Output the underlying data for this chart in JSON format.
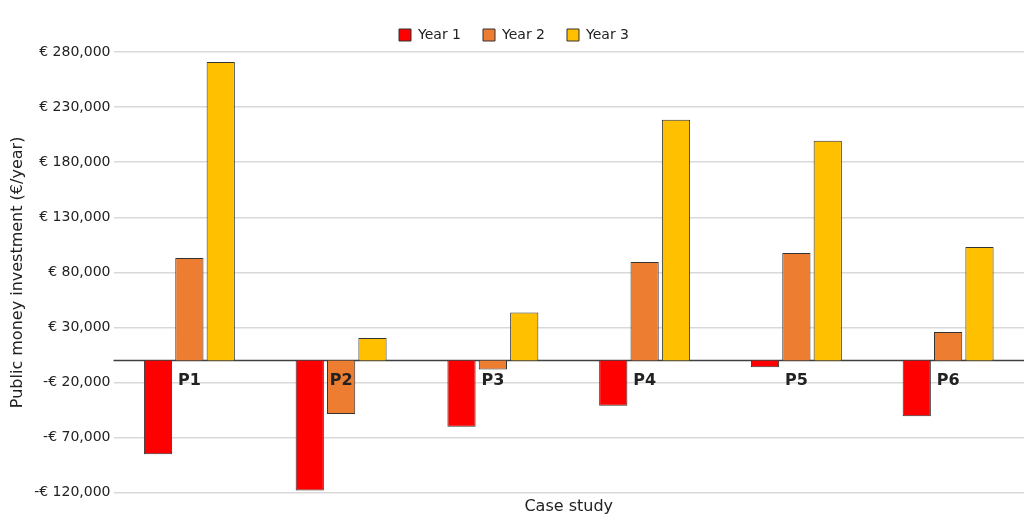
{
  "chart_data": {
    "type": "bar",
    "xlabel": "Case study",
    "ylabel": "Public money investment (€/year)",
    "categories": [
      "P1",
      "P2",
      "P3",
      "P4",
      "P5",
      "P6"
    ],
    "series": [
      {
        "name": "Year 1",
        "color": "#ff0000",
        "values": [
          -85000,
          -118000,
          -60000,
          -41000,
          -6000,
          -50500
        ]
      },
      {
        "name": "Year 2",
        "color": "#ed7d31",
        "values": [
          93000,
          -48500,
          -8000,
          89500,
          97500,
          26000
        ]
      },
      {
        "name": "Year 3",
        "color": "#ffc000",
        "values": [
          271000,
          20500,
          43500,
          218500,
          199500,
          103000
        ]
      }
    ],
    "ylim": [
      -120000,
      280000
    ],
    "yticks": [
      {
        "value": -120000,
        "label": "-€ 120,000"
      },
      {
        "value": -70000,
        "label": "-€ 70,000"
      },
      {
        "value": -20000,
        "label": "-€ 20,000"
      },
      {
        "value": 30000,
        "label": "€ 30,000"
      },
      {
        "value": 80000,
        "label": "€ 80,000"
      },
      {
        "value": 130000,
        "label": "€ 130,000"
      },
      {
        "value": 180000,
        "label": "€ 180,000"
      },
      {
        "value": 230000,
        "label": "€ 230,000"
      },
      {
        "value": 280000,
        "label": "€ 280,000"
      }
    ],
    "grid": "y",
    "legend": "top"
  }
}
